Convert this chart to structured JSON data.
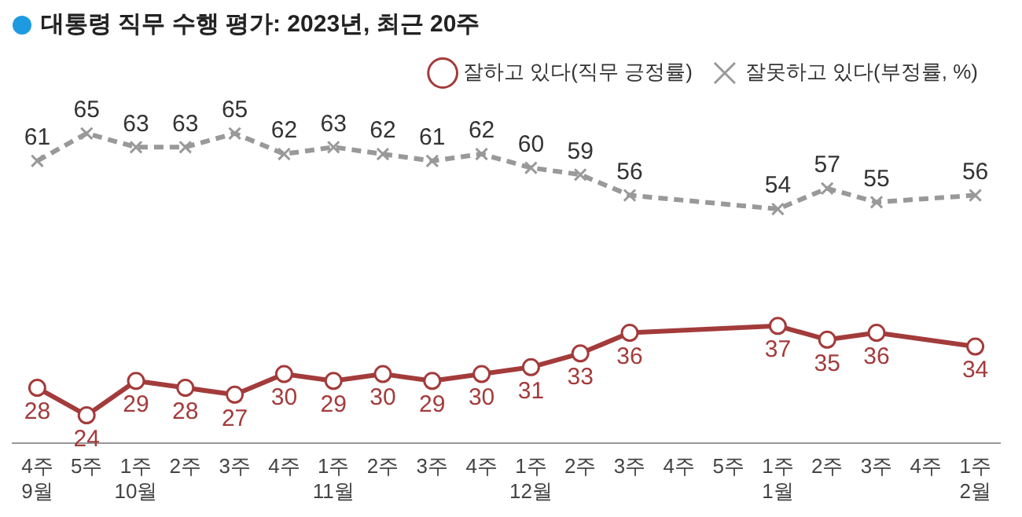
{
  "chart_data": {
    "type": "line",
    "title": "대통령 직무 수행 평가: 2023년, 최근 20주",
    "categories": [
      "4주\n9월",
      "5주",
      "1주\n10월",
      "2주",
      "3주",
      "4주",
      "1주\n11월",
      "2주",
      "3주",
      "4주",
      "1주\n12월",
      "2주",
      "3주",
      "4주",
      "5주",
      "1주\n1월",
      "2주",
      "3주",
      "4주",
      "1주\n2월"
    ],
    "series": [
      {
        "name": "잘하고 있다(직무 긍정률)",
        "color": "#a33b3b",
        "marker": "circle",
        "line_style": "solid",
        "values": [
          28,
          24,
          29,
          28,
          27,
          30,
          29,
          30,
          29,
          30,
          31,
          33,
          36,
          null,
          null,
          37,
          35,
          36,
          null,
          34
        ]
      },
      {
        "name": "잘못하고 있다(부정률, %)",
        "color": "#999999",
        "marker": "cross",
        "line_style": "dashed",
        "values": [
          61,
          65,
          63,
          63,
          65,
          62,
          63,
          62,
          61,
          62,
          60,
          59,
          56,
          null,
          null,
          54,
          57,
          55,
          null,
          56
        ]
      }
    ],
    "data_labels": true,
    "legend": "top right",
    "grid": false
  }
}
